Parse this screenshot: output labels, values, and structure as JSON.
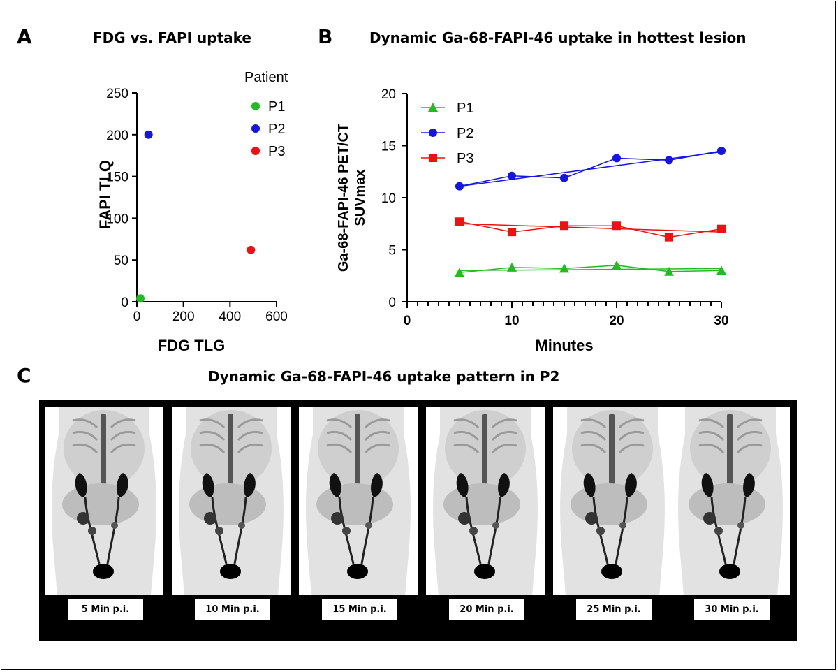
{
  "panels": {
    "a": {
      "letter": "A",
      "title": "FDG vs. FAPI uptake"
    },
    "b": {
      "letter": "B",
      "title": "Dynamic Ga-68-FAPI-46 uptake in hottest lesion"
    },
    "c": {
      "letter": "C",
      "title": "Dynamic Ga-68-FAPI-46 uptake pattern in P2",
      "frames": [
        "5 Min p.i.",
        "10 Min p.i.",
        "15 Min p.i.",
        "20 Min p.i.",
        "25 Min p.i.",
        "30 Min p.i."
      ]
    }
  },
  "chart_data": [
    {
      "type": "scatter",
      "title": "FDG vs. FAPI uptake",
      "xlabel": "FDG TLG",
      "ylabel": "FAPI TLQ",
      "xlim": [
        0,
        600
      ],
      "ylim": [
        0,
        250
      ],
      "xticks": [
        0,
        200,
        400,
        600
      ],
      "yticks": [
        0,
        50,
        100,
        150,
        200,
        250
      ],
      "legend_title": "Patient",
      "legend_position": "top-right",
      "series": [
        {
          "name": "P1",
          "color": "#22bb22",
          "points": [
            [
              15,
              4
            ]
          ]
        },
        {
          "name": "P2",
          "color": "#1414e6",
          "points": [
            [
              50,
              200
            ]
          ]
        },
        {
          "name": "P3",
          "color": "#ee1111",
          "points": [
            [
              490,
              62
            ]
          ]
        }
      ]
    },
    {
      "type": "line",
      "title": "Dynamic Ga-68-FAPI-46 uptake in hottest lesion",
      "xlabel": "Minutes",
      "ylabel_line1": "Ga-68-FAPI-46 PET/CT",
      "ylabel_line2": "SUVmax",
      "xlim": [
        0,
        30
      ],
      "ylim": [
        0,
        20
      ],
      "xticks": [
        0,
        10,
        20,
        30
      ],
      "yticks": [
        0,
        5,
        10,
        15,
        20
      ],
      "legend_position": "top-left",
      "x": [
        5,
        10,
        15,
        20,
        25,
        30
      ],
      "series": [
        {
          "name": "P1",
          "color": "#22bb22",
          "marker": "triangle",
          "values": [
            2.8,
            3.3,
            3.2,
            3.5,
            2.9,
            3.0
          ],
          "fit": [
            3.0,
            3.2
          ]
        },
        {
          "name": "P2",
          "color": "#1414e6",
          "marker": "circle",
          "values": [
            11.1,
            12.1,
            11.9,
            13.8,
            13.6,
            14.5
          ],
          "fit": [
            11.1,
            14.4
          ]
        },
        {
          "name": "P3",
          "color": "#ee1111",
          "marker": "square",
          "values": [
            7.7,
            6.7,
            7.3,
            7.3,
            6.2,
            7.0
          ],
          "fit": [
            7.5,
            6.7
          ]
        }
      ]
    }
  ]
}
